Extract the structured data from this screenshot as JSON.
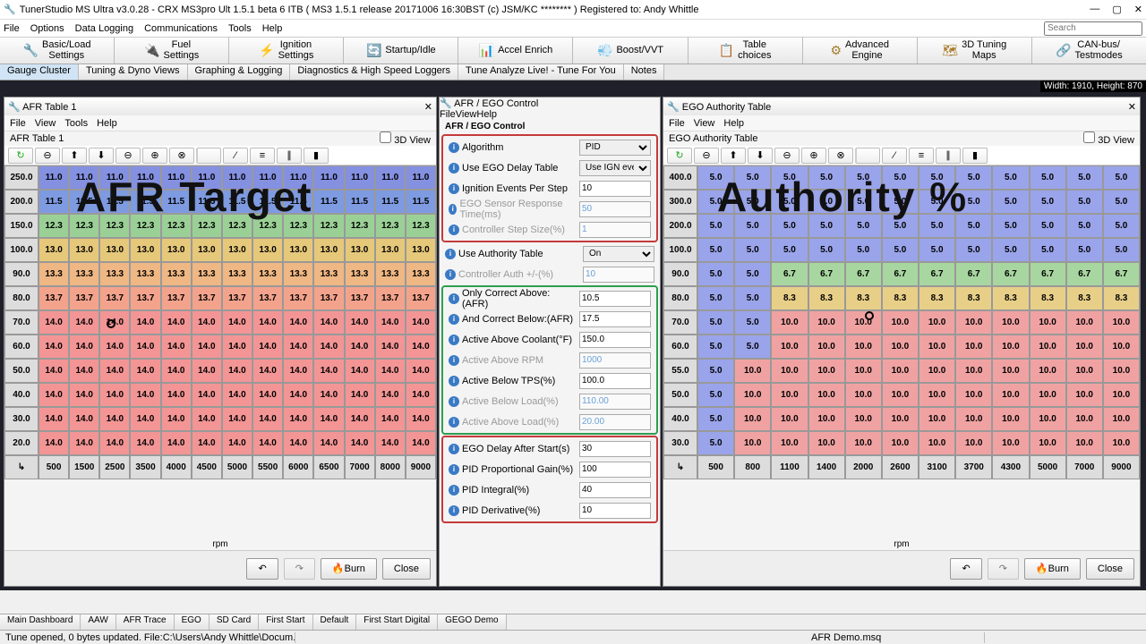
{
  "title": "TunerStudio MS Ultra v3.0.28  - CRX MS3pro Ult 1.5.1 beta 6 ITB  ( MS3 1.5.1 release     20171006 16:30BST (c) JSM/KC ******** ) Registered to: Andy Whittle",
  "menubar": [
    "File",
    "Options",
    "Data Logging",
    "Communications",
    "Tools",
    "Help"
  ],
  "search_placeholder": "Search",
  "toolbar": [
    {
      "icon": "🔧",
      "label": "Basic/Load\nSettings"
    },
    {
      "icon": "🔌",
      "label": "Fuel\nSettings"
    },
    {
      "icon": "⚡",
      "label": "Ignition\nSettings"
    },
    {
      "icon": "🔄",
      "label": "Startup/Idle"
    },
    {
      "icon": "📊",
      "label": "Accel Enrich"
    },
    {
      "icon": "💨",
      "label": "Boost/VVT"
    },
    {
      "icon": "📋",
      "label": "Table\nchoices"
    },
    {
      "icon": "⚙",
      "label": "Advanced\nEngine"
    },
    {
      "icon": "🗺",
      "label": "3D Tuning\nMaps"
    },
    {
      "icon": "🔗",
      "label": "CAN-bus/\nTestmodes"
    }
  ],
  "tabs": [
    "Gauge Cluster",
    "Tuning & Dyno Views",
    "Graphing & Logging",
    "Diagnostics & High Speed Loggers",
    "Tune Analyze Live! - Tune For You",
    "Notes"
  ],
  "active_tab": 0,
  "dim_label": "Width: 1910, Height: 870",
  "submenus": [
    "File",
    "View",
    "Tools",
    "Help"
  ],
  "submenus_short": [
    "File",
    "View",
    "Help"
  ],
  "view_3d": "3D View",
  "burn": "Burn",
  "close": "Close",
  "rpm": "rpm",
  "afr": {
    "title": "AFR Table 1",
    "sublabel": "AFR Table 1",
    "overlay": "AFR Target",
    "rpm_axis": [
      500,
      1500,
      2500,
      3500,
      4000,
      4500,
      5000,
      5500,
      6000,
      6500,
      7000,
      8000,
      9000
    ],
    "load_axis": [
      250.0,
      200.0,
      150.0,
      100.0,
      90.0,
      80.0,
      70.0,
      60.0,
      50.0,
      40.0,
      30.0,
      20.0
    ],
    "cells": [
      [
        11.0,
        11.0,
        11.0,
        11.0,
        11.0,
        11.0,
        11.0,
        11.0,
        11.0,
        11.0,
        11.0,
        11.0,
        11.0
      ],
      [
        11.5,
        11.5,
        11.5,
        11.5,
        11.5,
        11.5,
        11.5,
        11.5,
        11.5,
        11.5,
        11.5,
        11.5,
        11.5
      ],
      [
        12.3,
        12.3,
        12.3,
        12.3,
        12.3,
        12.3,
        12.3,
        12.3,
        12.3,
        12.3,
        12.3,
        12.3,
        12.3
      ],
      [
        13.0,
        13.0,
        13.0,
        13.0,
        13.0,
        13.0,
        13.0,
        13.0,
        13.0,
        13.0,
        13.0,
        13.0,
        13.0
      ],
      [
        13.3,
        13.3,
        13.3,
        13.3,
        13.3,
        13.3,
        13.3,
        13.3,
        13.3,
        13.3,
        13.3,
        13.3,
        13.3
      ],
      [
        13.7,
        13.7,
        13.7,
        13.7,
        13.7,
        13.7,
        13.7,
        13.7,
        13.7,
        13.7,
        13.7,
        13.7,
        13.7
      ],
      [
        14.0,
        14.0,
        14.0,
        14.0,
        14.0,
        14.0,
        14.0,
        14.0,
        14.0,
        14.0,
        14.0,
        14.0,
        14.0
      ],
      [
        14.0,
        14.0,
        14.0,
        14.0,
        14.0,
        14.0,
        14.0,
        14.0,
        14.0,
        14.0,
        14.0,
        14.0,
        14.0
      ],
      [
        14.0,
        14.0,
        14.0,
        14.0,
        14.0,
        14.0,
        14.0,
        14.0,
        14.0,
        14.0,
        14.0,
        14.0,
        14.0
      ],
      [
        14.0,
        14.0,
        14.0,
        14.0,
        14.0,
        14.0,
        14.0,
        14.0,
        14.0,
        14.0,
        14.0,
        14.0,
        14.0
      ],
      [
        14.0,
        14.0,
        14.0,
        14.0,
        14.0,
        14.0,
        14.0,
        14.0,
        14.0,
        14.0,
        14.0,
        14.0,
        14.0
      ],
      [
        14.0,
        14.0,
        14.0,
        14.0,
        14.0,
        14.0,
        14.0,
        14.0,
        14.0,
        14.0,
        14.0,
        14.0,
        14.0
      ]
    ],
    "colors": [
      "#8490e0",
      "#8490e0",
      "#8490e0",
      "#8490e0",
      "#8490e0",
      "#8490e0",
      "#8490e0",
      "#8490e0",
      "#8490e0",
      "#8490e0",
      "#8490e0",
      "#8490e0",
      "#8490e0",
      "#7e9ae0",
      "#7e9ae0",
      "#7e9ae0",
      "#7e9ae0",
      "#7e9ae0",
      "#7e9ae0",
      "#7e9ae0",
      "#7e9ae0",
      "#7e9ae0",
      "#7e9ae0",
      "#7e9ae0",
      "#7e9ae0",
      "#7e9ae0",
      "#9ad096",
      "#9ad096",
      "#9ad096",
      "#9ad096",
      "#9ad096",
      "#9ad096",
      "#9ad096",
      "#9ad096",
      "#9ad096",
      "#9ad096",
      "#9ad096",
      "#9ad096",
      "#9ad096",
      "#e6c87a",
      "#e6c87a",
      "#e6c87a",
      "#e6c87a",
      "#e6c87a",
      "#e6c87a",
      "#e6c87a",
      "#e6c87a",
      "#e6c87a",
      "#e6c87a",
      "#e6c87a",
      "#e6c87a",
      "#e6c87a",
      "#efb783",
      "#efb783",
      "#efb783",
      "#efb783",
      "#efb783",
      "#efb783",
      "#efb783",
      "#efb783",
      "#efb783",
      "#efb783",
      "#efb783",
      "#efb783",
      "#efb783",
      "#f3a38c",
      "#f3a38c",
      "#f3a38c",
      "#f3a38c",
      "#f3a38c",
      "#f3a38c",
      "#f3a38c",
      "#f3a38c",
      "#f3a38c",
      "#f3a38c",
      "#f3a38c",
      "#f3a38c",
      "#f3a38c",
      "#f39595",
      "#f39595",
      "#f39595",
      "#f39595",
      "#f39595",
      "#f39595",
      "#f39595",
      "#f39595",
      "#f39595",
      "#f39595",
      "#f39595",
      "#f39595",
      "#f39595",
      "#f39595",
      "#f39595",
      "#f39595",
      "#f39595",
      "#f39595",
      "#f39595",
      "#f39595",
      "#f39595",
      "#f39595",
      "#f39595",
      "#f39595",
      "#f39595",
      "#f39595",
      "#f39595",
      "#f39595",
      "#f39595",
      "#f39595",
      "#f39595",
      "#f39595",
      "#f39595",
      "#f39595",
      "#f39595",
      "#f39595",
      "#f39595",
      "#f39595",
      "#f39595",
      "#f39595",
      "#f39595",
      "#f39595",
      "#f39595",
      "#f39595",
      "#f39595",
      "#f39595",
      "#f39595",
      "#f39595",
      "#f39595",
      "#f39595",
      "#f39595",
      "#f39595",
      "#f39595",
      "#f39595",
      "#f39595",
      "#f39595",
      "#f39595",
      "#f39595",
      "#f39595",
      "#f39595",
      "#f39595",
      "#f39595",
      "#f39595",
      "#f39595",
      "#f39595",
      "#f39595",
      "#f39595",
      "#f39595",
      "#f39595",
      "#f39595",
      "#f39595",
      "#f39595",
      "#f39595",
      "#f39595",
      "#f39595",
      "#f39595",
      "#f39595",
      "#f39595"
    ]
  },
  "auth": {
    "title": "EGO Authority Table",
    "sublabel": "EGO Authority Table",
    "overlay": "Authority %",
    "rpm_axis": [
      500,
      800,
      1100,
      1400,
      2000,
      2600,
      3100,
      3700,
      4300,
      5000,
      7000,
      9000
    ],
    "load_axis": [
      400.0,
      300.0,
      200.0,
      100.0,
      90.0,
      80.0,
      70.0,
      60.0,
      55.0,
      50.0,
      40.0,
      30.0
    ],
    "cells": [
      [
        5.0,
        5.0,
        5.0,
        5.0,
        5.0,
        5.0,
        5.0,
        5.0,
        5.0,
        5.0,
        5.0,
        5.0
      ],
      [
        5.0,
        5.0,
        5.0,
        5.0,
        5.0,
        5.0,
        5.0,
        5.0,
        5.0,
        5.0,
        5.0,
        5.0
      ],
      [
        5.0,
        5.0,
        5.0,
        5.0,
        5.0,
        5.0,
        5.0,
        5.0,
        5.0,
        5.0,
        5.0,
        5.0
      ],
      [
        5.0,
        5.0,
        5.0,
        5.0,
        5.0,
        5.0,
        5.0,
        5.0,
        5.0,
        5.0,
        5.0,
        5.0
      ],
      [
        5.0,
        5.0,
        6.7,
        6.7,
        6.7,
        6.7,
        6.7,
        6.7,
        6.7,
        6.7,
        6.7,
        6.7
      ],
      [
        5.0,
        5.0,
        8.3,
        8.3,
        8.3,
        8.3,
        8.3,
        8.3,
        8.3,
        8.3,
        8.3,
        8.3
      ],
      [
        5.0,
        5.0,
        10.0,
        10.0,
        10.0,
        10.0,
        10.0,
        10.0,
        10.0,
        10.0,
        10.0,
        10.0
      ],
      [
        5.0,
        5.0,
        10.0,
        10.0,
        10.0,
        10.0,
        10.0,
        10.0,
        10.0,
        10.0,
        10.0,
        10.0
      ],
      [
        5.0,
        10.0,
        10.0,
        10.0,
        10.0,
        10.0,
        10.0,
        10.0,
        10.0,
        10.0,
        10.0,
        10.0
      ],
      [
        5.0,
        10.0,
        10.0,
        10.0,
        10.0,
        10.0,
        10.0,
        10.0,
        10.0,
        10.0,
        10.0,
        10.0
      ],
      [
        5.0,
        10.0,
        10.0,
        10.0,
        10.0,
        10.0,
        10.0,
        10.0,
        10.0,
        10.0,
        10.0,
        10.0
      ],
      [
        5.0,
        10.0,
        10.0,
        10.0,
        10.0,
        10.0,
        10.0,
        10.0,
        10.0,
        10.0,
        10.0,
        10.0
      ]
    ],
    "colors": [
      "#9aa4ea",
      "#9aa4ea",
      "#9aa4ea",
      "#9aa4ea",
      "#9aa4ea",
      "#9aa4ea",
      "#9aa4ea",
      "#9aa4ea",
      "#9aa4ea",
      "#9aa4ea",
      "#9aa4ea",
      "#9aa4ea",
      "#9aa4ea",
      "#9aa4ea",
      "#9aa4ea",
      "#9aa4ea",
      "#9aa4ea",
      "#9aa4ea",
      "#9aa4ea",
      "#9aa4ea",
      "#9aa4ea",
      "#9aa4ea",
      "#9aa4ea",
      "#9aa4ea",
      "#9aa4ea",
      "#9aa4ea",
      "#9aa4ea",
      "#9aa4ea",
      "#9aa4ea",
      "#9aa4ea",
      "#9aa4ea",
      "#9aa4ea",
      "#9aa4ea",
      "#9aa4ea",
      "#9aa4ea",
      "#9aa4ea",
      "#9aa4ea",
      "#9aa4ea",
      "#9aa4ea",
      "#9aa4ea",
      "#9aa4ea",
      "#9aa4ea",
      "#9aa4ea",
      "#9aa4ea",
      "#9aa4ea",
      "#9aa4ea",
      "#9aa4ea",
      "#9aa4ea",
      "#9aa4ea",
      "#9aa4ea",
      "#a8d6a0",
      "#a8d6a0",
      "#a8d6a0",
      "#a8d6a0",
      "#a8d6a0",
      "#a8d6a0",
      "#a8d6a0",
      "#a8d6a0",
      "#a8d6a0",
      "#a8d6a0",
      "#9aa4ea",
      "#9aa4ea",
      "#e8cf88",
      "#e8cf88",
      "#e8cf88",
      "#e8cf88",
      "#e8cf88",
      "#e8cf88",
      "#e8cf88",
      "#e8cf88",
      "#e8cf88",
      "#e8cf88",
      "#9aa4ea",
      "#9aa4ea",
      "#f0a2a2",
      "#f0a2a2",
      "#f0a2a2",
      "#f0a2a2",
      "#f0a2a2",
      "#f0a2a2",
      "#f0a2a2",
      "#f0a2a2",
      "#f0a2a2",
      "#f0a2a2",
      "#9aa4ea",
      "#9aa4ea",
      "#f0a2a2",
      "#f0a2a2",
      "#f0a2a2",
      "#f0a2a2",
      "#f0a2a2",
      "#f0a2a2",
      "#f0a2a2",
      "#f0a2a2",
      "#f0a2a2",
      "#f0a2a2",
      "#9aa4ea",
      "#f0a2a2",
      "#f0a2a2",
      "#f0a2a2",
      "#f0a2a2",
      "#f0a2a2",
      "#f0a2a2",
      "#f0a2a2",
      "#f0a2a2",
      "#f0a2a2",
      "#f0a2a2",
      "#f0a2a2",
      "#9aa4ea",
      "#f0a2a2",
      "#f0a2a2",
      "#f0a2a2",
      "#f0a2a2",
      "#f0a2a2",
      "#f0a2a2",
      "#f0a2a2",
      "#f0a2a2",
      "#f0a2a2",
      "#f0a2a2",
      "#f0a2a2",
      "#9aa4ea",
      "#f0a2a2",
      "#f0a2a2",
      "#f0a2a2",
      "#f0a2a2",
      "#f0a2a2",
      "#f0a2a2",
      "#f0a2a2",
      "#f0a2a2",
      "#f0a2a2",
      "#f0a2a2",
      "#f0a2a2",
      "#9aa4ea",
      "#f0a2a2",
      "#f0a2a2",
      "#f0a2a2",
      "#f0a2a2",
      "#f0a2a2",
      "#f0a2a2",
      "#f0a2a2",
      "#f0a2a2",
      "#f0a2a2",
      "#f0a2a2",
      "#f0a2a2"
    ]
  },
  "ego": {
    "title": "AFR / EGO Control",
    "section": "AFR / EGO Control",
    "box1_color": "#c43a3a",
    "box2_color": "#2e9e4f",
    "box3_color": "#c43a3a",
    "rows1": [
      {
        "label": "Algorithm",
        "type": "select",
        "value": "PID"
      },
      {
        "label": "Use EGO Delay Table",
        "type": "select",
        "value": "Use IGN events"
      },
      {
        "label": "Ignition Events Per Step",
        "type": "num",
        "value": "10"
      },
      {
        "label": "EGO Sensor Response Time(ms)",
        "type": "num",
        "value": "50",
        "dis": true
      },
      {
        "label": "Controller Step Size(%)",
        "type": "num",
        "value": "1",
        "dis": true
      }
    ],
    "auth_row": {
      "label": "Use Authority Table",
      "type": "select",
      "value": "On"
    },
    "auth_dis": {
      "label": "Controller Auth +/-(%)",
      "value": "10",
      "dis": true
    },
    "rows2": [
      {
        "label": "Only Correct Above:(AFR)",
        "value": "10.5"
      },
      {
        "label": "And Correct Below:(AFR)",
        "value": "17.5"
      },
      {
        "label": "Active Above Coolant(°F)",
        "value": "150.0"
      },
      {
        "label": "Active Above RPM",
        "value": "1000",
        "dis": true
      },
      {
        "label": "Active Below TPS(%)",
        "value": "100.0"
      },
      {
        "label": "Active Below Load(%)",
        "value": "110.00",
        "dis": true
      },
      {
        "label": "Active Above Load(%)",
        "value": "20.00",
        "dis": true
      }
    ],
    "rows3": [
      {
        "label": "EGO Delay After Start(s)",
        "value": "30"
      },
      {
        "label": "PID Proportional Gain(%)",
        "value": "100"
      },
      {
        "label": "PID Integral(%)",
        "value": "40"
      },
      {
        "label": "PID Derivative(%)",
        "value": "10"
      }
    ]
  },
  "icon_buttons": [
    "↻",
    "⊖",
    "⬆",
    "⬇",
    "⊖",
    "⊕",
    "⊗",
    "",
    "⁄",
    "≡",
    "∥",
    "▮"
  ],
  "bottom_tabs": [
    "Main Dashboard",
    "AAW",
    "AFR Trace",
    "EGO",
    "SD Card",
    "First Start",
    "Default",
    "First Start Digital",
    "GEGO Demo"
  ],
  "status_left": "Tune opened, 0 bytes updated. File:C:\\Users\\Andy Whittle\\Docum...",
  "status_right": "AFR Demo.msq"
}
